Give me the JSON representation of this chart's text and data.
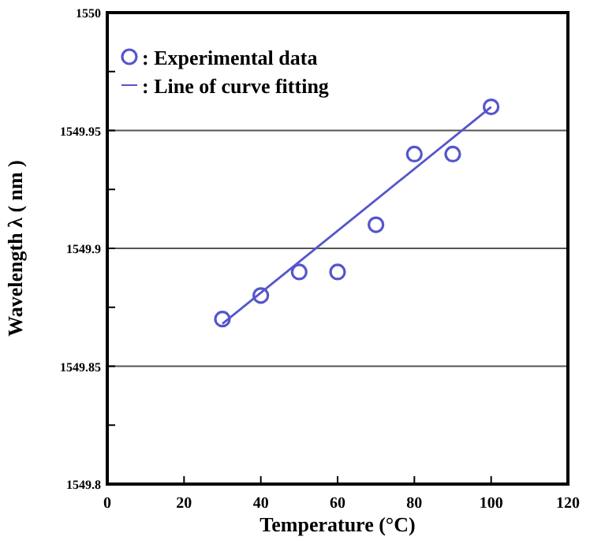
{
  "chart_data": {
    "type": "scatter",
    "xlabel": "Temperature (°C)",
    "ylabel": "Wavelength  λ ( nm )",
    "xlim": [
      0,
      120
    ],
    "xticks": [
      0,
      20,
      40,
      60,
      80,
      100,
      120
    ],
    "ylim": [
      1549.8,
      1550
    ],
    "yticks": [
      1549.8,
      {
        "value": 1549.825,
        "label": null
      },
      1549.85,
      {
        "value": 1549.875,
        "label": null
      },
      1549.9,
      {
        "value": 1549.925,
        "label": null
      },
      1549.95,
      {
        "value": 1549.975,
        "label": null
      },
      1550
    ],
    "grid": "y",
    "legend": "top left",
    "series": [
      {
        "name": ": Experimental data",
        "marker": "circle",
        "color": "#5555cc",
        "x": [
          30,
          40,
          50,
          60,
          70,
          80,
          90,
          100
        ],
        "values": [
          1549.87,
          1549.88,
          1549.89,
          1549.89,
          1549.91,
          1549.94,
          1549.94,
          1549.96
        ]
      },
      {
        "name": ": Line of curve fitting",
        "type": "line",
        "marker": "none",
        "line_style": "solid",
        "color": "#5555cc",
        "x": [
          30,
          100
        ],
        "values": [
          1549.868,
          1549.96
        ]
      }
    ]
  }
}
